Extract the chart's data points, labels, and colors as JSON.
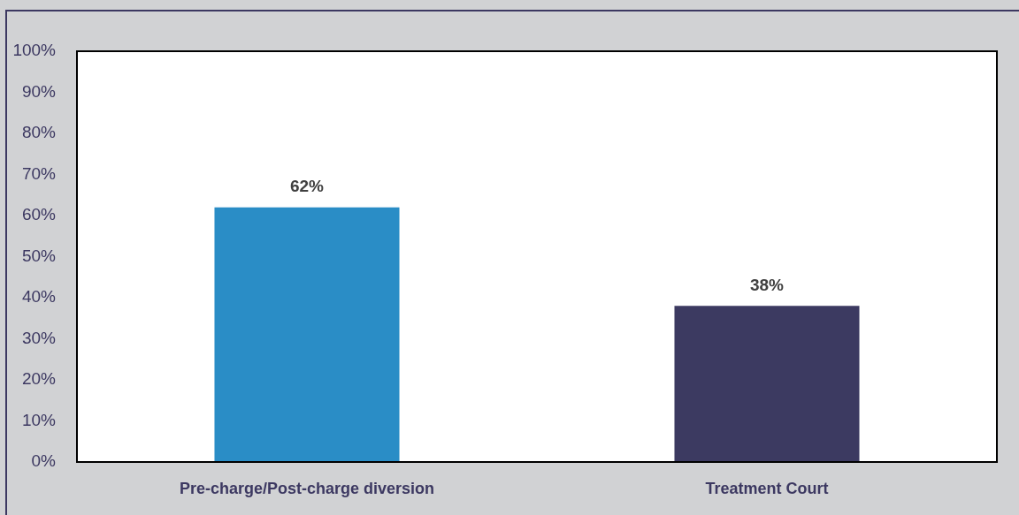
{
  "chart_data": {
    "type": "bar",
    "categories": [
      "Pre-charge/Post-charge diversion",
      "Treatment Court"
    ],
    "values": [
      62,
      38
    ],
    "colors": [
      "#2a8dc6",
      "#3c3a61"
    ],
    "value_labels": [
      "62%",
      "38%"
    ],
    "ylim": [
      0,
      100
    ],
    "yticks": [
      {
        "value": 0,
        "label": "0%"
      },
      {
        "value": 10,
        "label": "10%"
      },
      {
        "value": 20,
        "label": "20%"
      },
      {
        "value": 30,
        "label": "30%"
      },
      {
        "value": 40,
        "label": "40%"
      },
      {
        "value": 50,
        "label": "50%"
      },
      {
        "value": 60,
        "label": "60%"
      },
      {
        "value": 70,
        "label": "70%"
      },
      {
        "value": 80,
        "label": "80%"
      },
      {
        "value": 90,
        "label": "90%"
      },
      {
        "value": 100,
        "label": "100%"
      }
    ]
  }
}
